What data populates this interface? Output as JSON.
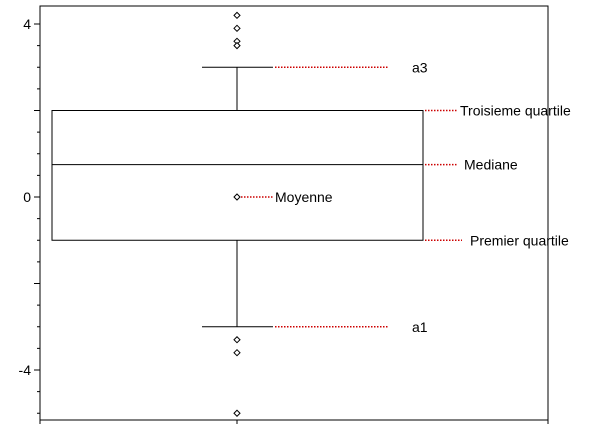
{
  "chart_data": {
    "type": "box",
    "title": "",
    "xlabel": "",
    "ylabel": "",
    "ylim": [
      -5.2,
      4.3
    ],
    "yticks": [
      {
        "value": 4,
        "label": "4"
      },
      {
        "value": 0,
        "label": "0"
      },
      {
        "value": -4,
        "label": "-4"
      }
    ],
    "ymajor_ticks": [
      4,
      2,
      0,
      -2,
      -4
    ],
    "box": {
      "whisker_high": 3,
      "q3": 2,
      "median": 0.75,
      "mean": 0,
      "q1": -1,
      "whisker_low": -3
    },
    "outliers": [
      4.2,
      3.9,
      3.6,
      3.5,
      -3.3,
      -3.6,
      -5.0
    ],
    "annotations": [
      {
        "label": "a3",
        "target": "whisker_high",
        "value": 3
      },
      {
        "label": "Troisieme quartile",
        "target": "q3",
        "value": 2
      },
      {
        "label": "Mediane",
        "target": "median",
        "value": 0.75
      },
      {
        "label": "Moyenne",
        "target": "mean",
        "value": 0
      },
      {
        "label": "Premier quartile",
        "target": "q1",
        "value": -1
      },
      {
        "label": "a1",
        "target": "whisker_low",
        "value": -3
      }
    ],
    "colors": {
      "box": "#000000",
      "leader": "#cc0000"
    }
  }
}
